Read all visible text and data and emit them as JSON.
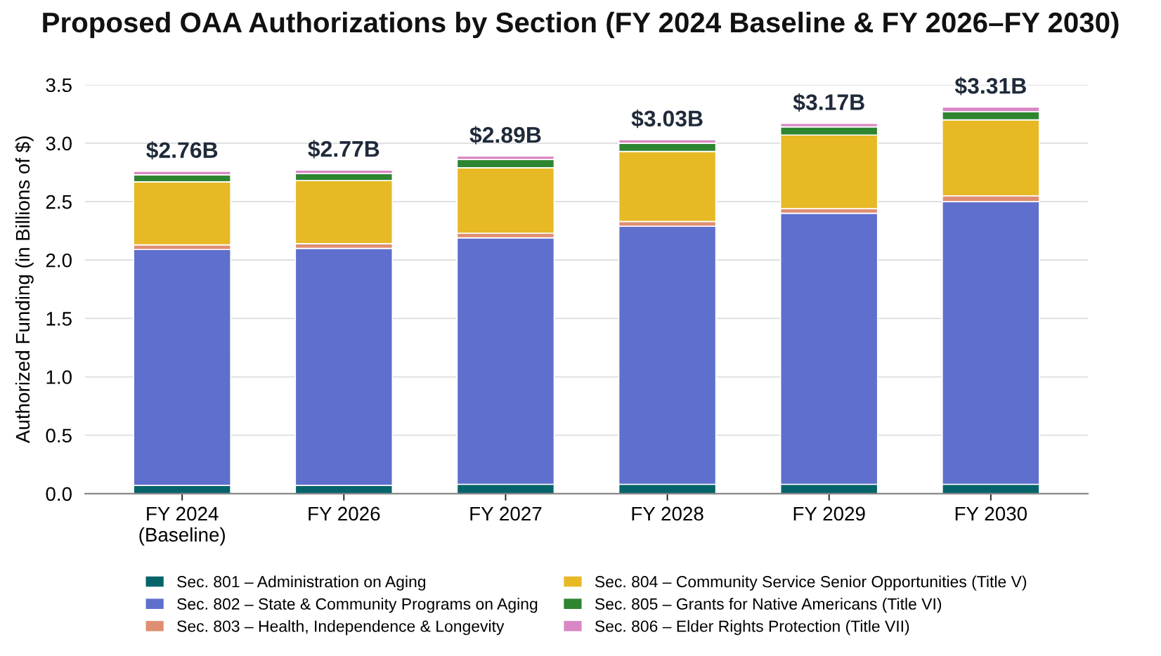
{
  "chart_data": {
    "type": "bar",
    "title": "Proposed OAA Authorizations by Section (FY 2024 Baseline & FY 2026–FY 2030)",
    "ylabel": "Authorized Funding (in Billions of $)",
    "categories": [
      "FY 2024\n(Baseline)",
      "FY 2026",
      "FY 2027",
      "FY 2028",
      "FY 2029",
      "FY 2030"
    ],
    "stacked": true,
    "series": [
      {
        "name": "Sec. 801 – Administration on Aging",
        "color": "#05646a",
        "values": [
          0.07,
          0.07,
          0.08,
          0.08,
          0.08,
          0.08
        ]
      },
      {
        "name": "Sec. 802 – State & Community Programs on Aging",
        "color": "#5f6fcd",
        "values": [
          2.02,
          2.03,
          2.11,
          2.21,
          2.32,
          2.42
        ]
      },
      {
        "name": "Sec. 803 – Health, Independence & Longevity",
        "color": "#e08e72",
        "values": [
          0.04,
          0.04,
          0.04,
          0.04,
          0.04,
          0.05
        ]
      },
      {
        "name": "Sec. 804 – Community Service Senior Opportunities (Title V)",
        "color": "#e6b925",
        "values": [
          0.54,
          0.54,
          0.56,
          0.6,
          0.63,
          0.65
        ]
      },
      {
        "name": "Sec. 805 – Grants for Native Americans (Title VI)",
        "color": "#2e8531",
        "values": [
          0.06,
          0.06,
          0.07,
          0.07,
          0.07,
          0.07
        ]
      },
      {
        "name": "Sec. 806 – Elder Rights Protection (Title VII)",
        "color": "#d987c4",
        "values": [
          0.03,
          0.03,
          0.03,
          0.03,
          0.03,
          0.04
        ]
      }
    ],
    "totals": [
      "$2.76B",
      "$2.77B",
      "$2.89B",
      "$3.03B",
      "$3.17B",
      "$3.31B"
    ],
    "ylim": [
      0,
      3.5
    ],
    "yticks": [
      {
        "value": 0,
        "label": "0.0"
      },
      {
        "value": 0.5,
        "label": "0.5"
      },
      {
        "value": 1,
        "label": "1.0"
      },
      {
        "value": 1.5,
        "label": "1.5"
      },
      {
        "value": 2,
        "label": "2.0"
      },
      {
        "value": 2.5,
        "label": "2.5"
      },
      {
        "value": 3,
        "label": "3.0"
      },
      {
        "value": 3.5,
        "label": "3.5"
      }
    ],
    "grid": "y",
    "legend": "bottom"
  }
}
